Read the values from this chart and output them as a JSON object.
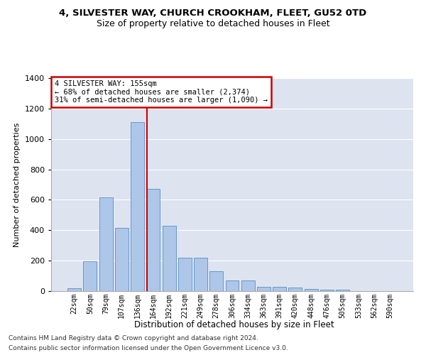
{
  "title_line1": "4, SILVESTER WAY, CHURCH CROOKHAM, FLEET, GU52 0TD",
  "title_line2": "Size of property relative to detached houses in Fleet",
  "xlabel": "Distribution of detached houses by size in Fleet",
  "ylabel": "Number of detached properties",
  "bar_labels": [
    "22sqm",
    "50sqm",
    "79sqm",
    "107sqm",
    "136sqm",
    "164sqm",
    "192sqm",
    "221sqm",
    "249sqm",
    "278sqm",
    "306sqm",
    "334sqm",
    "363sqm",
    "391sqm",
    "420sqm",
    "448sqm",
    "476sqm",
    "505sqm",
    "533sqm",
    "562sqm",
    "590sqm"
  ],
  "bar_values": [
    18,
    195,
    615,
    415,
    1110,
    670,
    430,
    220,
    220,
    130,
    70,
    70,
    30,
    30,
    25,
    15,
    10,
    10,
    2,
    2,
    2
  ],
  "bar_color": "#aec6e8",
  "bar_edge_color": "#6699cc",
  "background_color": "#dde4f0",
  "grid_color": "#ffffff",
  "red_line_x": 4.62,
  "annotation_text": "4 SILVESTER WAY: 155sqm\n← 68% of detached houses are smaller (2,374)\n31% of semi-detached houses are larger (1,090) →",
  "annotation_box_color": "#ffffff",
  "annotation_border_color": "#cc0000",
  "ylim": [
    0,
    1400
  ],
  "yticks": [
    0,
    200,
    400,
    600,
    800,
    1000,
    1200,
    1400
  ],
  "footer_line1": "Contains HM Land Registry data © Crown copyright and database right 2024.",
  "footer_line2": "Contains public sector information licensed under the Open Government Licence v3.0."
}
